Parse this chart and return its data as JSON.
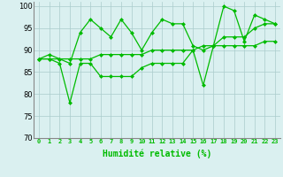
{
  "title": "",
  "xlabel": "Humidité relative (%)",
  "ylabel": "",
  "xlim": [
    -0.5,
    23.5
  ],
  "ylim": [
    70,
    101
  ],
  "yticks": [
    70,
    75,
    80,
    85,
    90,
    95,
    100
  ],
  "xticks": [
    0,
    1,
    2,
    3,
    4,
    5,
    6,
    7,
    8,
    9,
    10,
    11,
    12,
    13,
    14,
    15,
    16,
    17,
    18,
    19,
    20,
    21,
    22,
    23
  ],
  "background_color": "#daf0f0",
  "line_color": "#00bb00",
  "lines": [
    [
      88,
      89,
      88,
      87,
      94,
      97,
      95,
      93,
      97,
      94,
      90,
      94,
      97,
      96,
      96,
      91,
      90,
      91,
      100,
      99,
      92,
      98,
      97,
      96
    ],
    [
      88,
      88,
      87,
      78,
      87,
      87,
      84,
      84,
      84,
      84,
      86,
      87,
      87,
      87,
      87,
      90,
      82,
      91,
      91,
      91,
      91,
      91,
      92,
      92
    ],
    [
      88,
      88,
      88,
      88,
      88,
      88,
      89,
      89,
      89,
      89,
      89,
      90,
      90,
      90,
      90,
      90,
      91,
      91,
      93,
      93,
      93,
      95,
      96,
      96
    ]
  ],
  "xlabel_fontsize": 7,
  "xlabel_bold": true,
  "xtick_fontsize": 5,
  "ytick_fontsize": 6,
  "grid_color": "#aacccc",
  "grid_lw": 0.5
}
